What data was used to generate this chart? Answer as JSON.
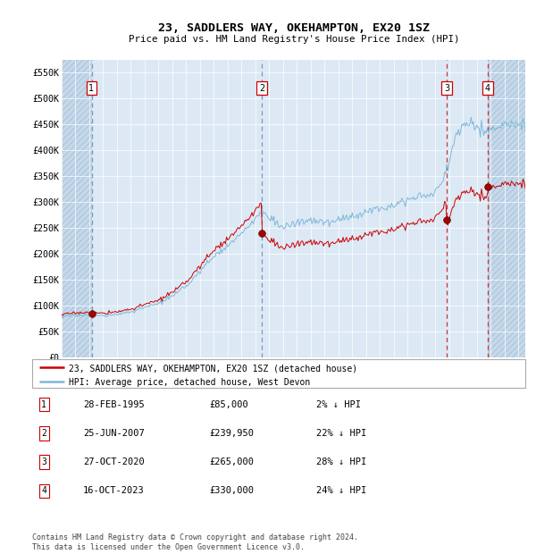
{
  "title": "23, SADDLERS WAY, OKEHAMPTON, EX20 1SZ",
  "subtitle": "Price paid vs. HM Land Registry's House Price Index (HPI)",
  "legend_line1": "23, SADDLERS WAY, OKEHAMPTON, EX20 1SZ (detached house)",
  "legend_line2": "HPI: Average price, detached house, West Devon",
  "footer1": "Contains HM Land Registry data © Crown copyright and database right 2024.",
  "footer2": "This data is licensed under the Open Government Licence v3.0.",
  "hpi_color": "#7fb8d8",
  "price_color": "#cc0000",
  "bg_color": "#dce9f5",
  "hatch_color": "#c5d9ea",
  "grid_color": "#ffffff",
  "sales": [
    {
      "num": 1,
      "date": "1995-02-28",
      "price": 85000,
      "x": 1995.163
    },
    {
      "num": 2,
      "date": "2007-06-25",
      "price": 239950,
      "x": 2007.479
    },
    {
      "num": 3,
      "date": "2020-10-27",
      "price": 265000,
      "x": 2020.822
    },
    {
      "num": 4,
      "date": "2023-10-16",
      "price": 330000,
      "x": 2023.789
    }
  ],
  "sale_labels": [
    {
      "num": 1,
      "date": "28-FEB-1995",
      "price": "£85,000",
      "pct": "2% ↓ HPI"
    },
    {
      "num": 2,
      "date": "25-JUN-2007",
      "price": "£239,950",
      "pct": "22% ↓ HPI"
    },
    {
      "num": 3,
      "date": "27-OCT-2020",
      "price": "£265,000",
      "pct": "28% ↓ HPI"
    },
    {
      "num": 4,
      "date": "16-OCT-2023",
      "price": "£330,000",
      "pct": "24% ↓ HPI"
    }
  ],
  "xmin": 1993.0,
  "xmax": 2026.5,
  "ymin": 0,
  "ymax": 575000,
  "yticks": [
    0,
    50000,
    100000,
    150000,
    200000,
    250000,
    300000,
    350000,
    400000,
    450000,
    500000,
    550000
  ],
  "ytick_labels": [
    "£0",
    "£50K",
    "£100K",
    "£150K",
    "£200K",
    "£250K",
    "£300K",
    "£350K",
    "£400K",
    "£450K",
    "£500K",
    "£550K"
  ],
  "vline_colors": [
    "#7799bb",
    "#7799bb",
    "#cc3333",
    "#cc3333"
  ]
}
